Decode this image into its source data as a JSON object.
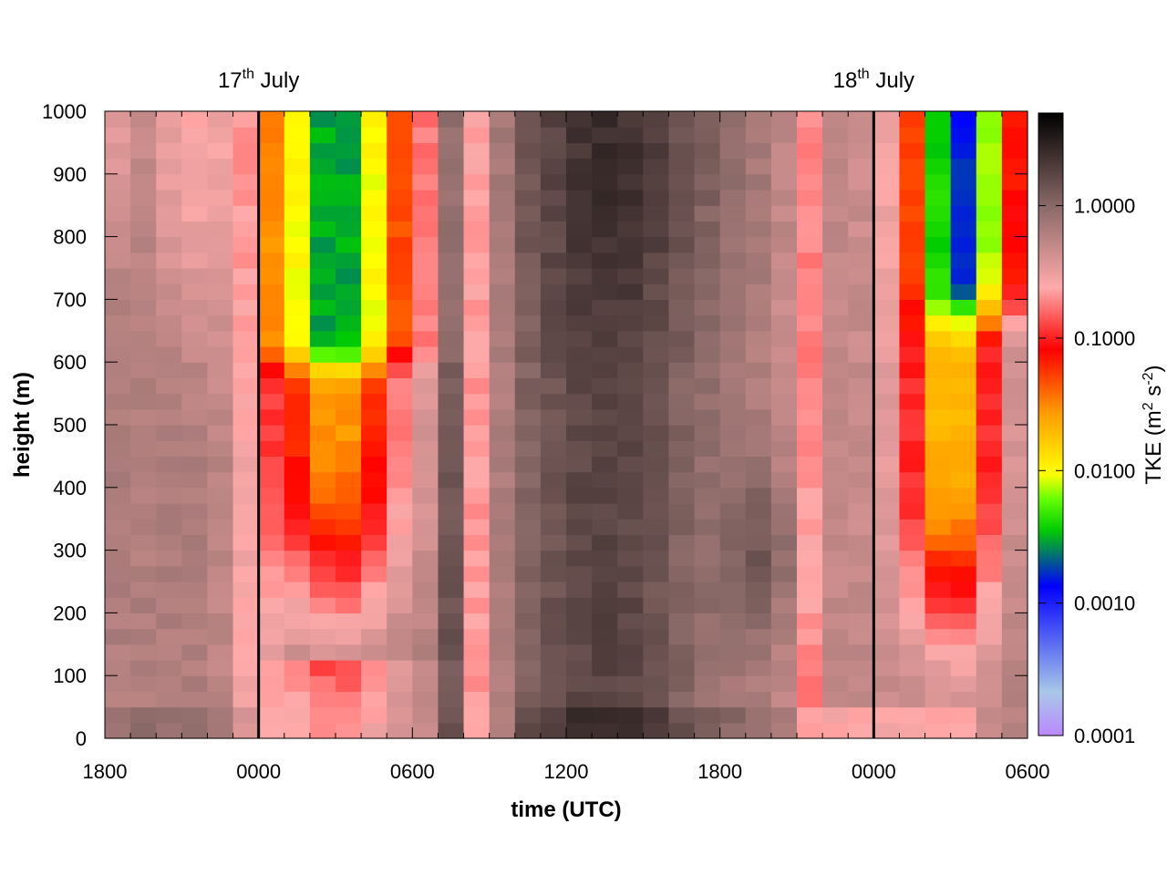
{
  "chart_data": {
    "type": "heatmap",
    "title": "",
    "xlabel": "time (UTC)",
    "ylabel": "height (m)",
    "x_tick_labels": [
      "1800",
      "0000",
      "0600",
      "1200",
      "1800",
      "0000",
      "0600"
    ],
    "x_range_hours": [
      0,
      36
    ],
    "y_ticks": [
      0,
      100,
      200,
      300,
      400,
      500,
      600,
      700,
      800,
      900,
      1000
    ],
    "ylim": [
      0,
      1000
    ],
    "day_markers": [
      {
        "hour": 6,
        "day": "17",
        "suffix": "th",
        "month": "July"
      },
      {
        "hour": 30,
        "day": "18",
        "suffix": "th",
        "month": "July"
      }
    ],
    "colorbar": {
      "label_main": "TKE (m",
      "label_exp1": "2",
      "label_mid": " s",
      "label_exp2": "-2",
      "label_end": ")",
      "scale": "log",
      "range": [
        0.0001,
        5.0
      ],
      "tick_values": [
        0.0001,
        0.001,
        0.01,
        0.1,
        1.0
      ],
      "tick_labels": [
        "0.0001",
        "0.0010",
        "0.0100",
        "0.1000",
        "1.0000"
      ],
      "colors": [
        "#bb88ff",
        "#a8c8e8",
        "#0000ff",
        "#00cc00",
        "#66ff00",
        "#ffff00",
        "#ff9900",
        "#ff0000",
        "#ffaaaa",
        "#8a6a68",
        "#000000"
      ]
    },
    "cell_hours": 1,
    "cell_meters": 25,
    "note_grid": "log10 TKE, rows bottom-to-top (0-1000 m in 25 m cells), columns 1 h wide"
  }
}
